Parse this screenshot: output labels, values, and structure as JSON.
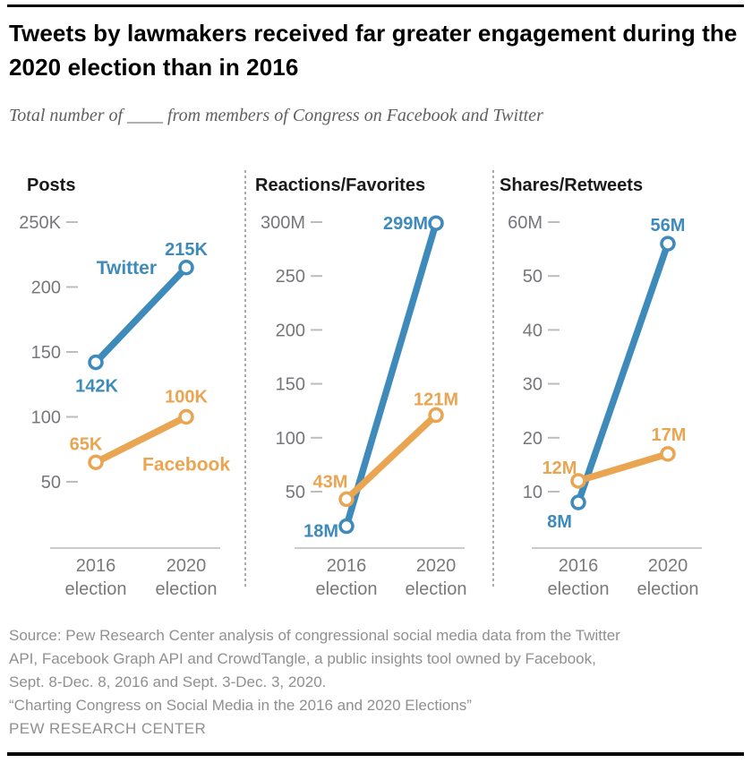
{
  "header": {
    "title": "Tweets by lawmakers received far greater engagement during the 2020 election than in 2016",
    "subtitle": "Total number of ____ from members of Congress on Facebook and Twitter"
  },
  "colors": {
    "twitter": "#3e8bbb",
    "facebook": "#e9a552",
    "axis_text": "#76777b",
    "tick_dash": "#bdbdbd",
    "axis_line": "#b9b9b9",
    "category_text": "#7a7a7a"
  },
  "chart_data": [
    {
      "type": "line",
      "title": "Posts",
      "unit": "thousands",
      "categories": [
        "2016 election",
        "2020 election"
      ],
      "y_axis": {
        "ticks": [
          {
            "label": "250K",
            "value": 250
          },
          {
            "label": "200",
            "value": 200
          },
          {
            "label": "150",
            "value": 150
          },
          {
            "label": "100",
            "value": 100
          },
          {
            "label": "50",
            "value": 50
          }
        ]
      },
      "legend": "inline series labels",
      "series": [
        {
          "name": "Twitter",
          "color_key": "twitter",
          "values": [
            142,
            215
          ],
          "value_labels": [
            "142K",
            "215K"
          ]
        },
        {
          "name": "Facebook",
          "color_key": "facebook",
          "values": [
            65,
            100
          ],
          "value_labels": [
            "65K",
            "100K"
          ]
        }
      ]
    },
    {
      "type": "line",
      "title": "Reactions/Favorites",
      "unit": "millions",
      "categories": [
        "2016 election",
        "2020 election"
      ],
      "y_axis": {
        "ticks": [
          {
            "label": "300M",
            "value": 300
          },
          {
            "label": "250",
            "value": 250
          },
          {
            "label": "200",
            "value": 200
          },
          {
            "label": "150",
            "value": 150
          },
          {
            "label": "100",
            "value": 100
          },
          {
            "label": "50",
            "value": 50
          }
        ]
      },
      "legend": "inline series labels",
      "series": [
        {
          "name": "Twitter",
          "color_key": "twitter",
          "values": [
            18,
            299
          ],
          "value_labels": [
            "18M",
            "299M"
          ]
        },
        {
          "name": "Facebook",
          "color_key": "facebook",
          "values": [
            43,
            121
          ],
          "value_labels": [
            "43M",
            "121M"
          ]
        }
      ]
    },
    {
      "type": "line",
      "title": "Shares/Retweets",
      "unit": "millions",
      "categories": [
        "2016 election",
        "2020 election"
      ],
      "y_axis": {
        "ticks": [
          {
            "label": "60M",
            "value": 60
          },
          {
            "label": "50",
            "value": 50
          },
          {
            "label": "40",
            "value": 40
          },
          {
            "label": "30",
            "value": 30
          },
          {
            "label": "20",
            "value": 20
          },
          {
            "label": "10",
            "value": 10
          }
        ]
      },
      "legend": "inline series labels",
      "series": [
        {
          "name": "Twitter",
          "color_key": "twitter",
          "values": [
            8,
            56
          ],
          "value_labels": [
            "8M",
            "56M"
          ]
        },
        {
          "name": "Facebook",
          "color_key": "facebook",
          "values": [
            12,
            17
          ],
          "value_labels": [
            "12M",
            "17M"
          ]
        }
      ]
    }
  ],
  "footer": {
    "source": "Source: Pew Research Center analysis of congressional social media data from the Twitter API, Facebook Graph API and CrowdTangle, a public insights tool owned by Facebook, Sept. 8-Dec. 8, 2016 and Sept. 3-Dec. 3, 2020.",
    "citation": "“Charting Congress on Social Media in the 2016 and 2020 Elections”",
    "org": "PEW RESEARCH CENTER"
  }
}
